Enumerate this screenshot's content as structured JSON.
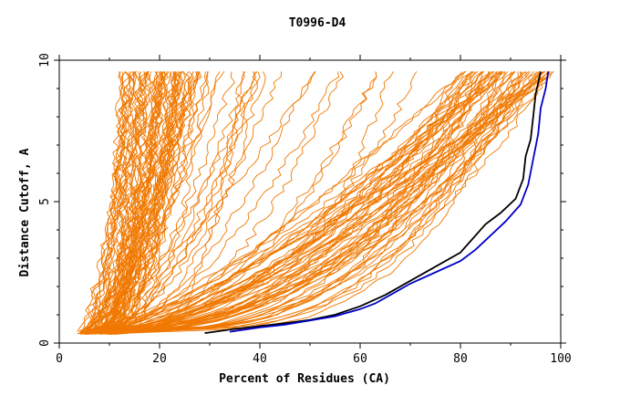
{
  "chart_data": {
    "type": "line",
    "title": "T0996-D4",
    "xlabel": "Percent of Residues (CA)",
    "ylabel": "Distance Cutoff, A",
    "xlim": [
      0,
      100
    ],
    "ylim": [
      0,
      10
    ],
    "x_ticks": [
      "0",
      "20",
      "40",
      "60",
      "80",
      "100"
    ],
    "y_ticks": [
      "0",
      "5",
      "10"
    ],
    "grid": false,
    "colors": {
      "models": "#f07800",
      "reference": "#000000",
      "best": "#0000c8"
    },
    "series": [
      {
        "role": "reference",
        "color": "#000000",
        "points": [
          [
            29,
            0.35
          ],
          [
            35,
            0.5
          ],
          [
            40,
            0.6
          ],
          [
            45,
            0.7
          ],
          [
            50,
            0.82
          ],
          [
            55,
            1.0
          ],
          [
            60,
            1.3
          ],
          [
            65,
            1.7
          ],
          [
            70,
            2.2
          ],
          [
            75,
            2.7
          ],
          [
            80,
            3.2
          ],
          [
            82,
            3.6
          ],
          [
            85,
            4.2
          ],
          [
            88,
            4.6
          ],
          [
            91,
            5.1
          ],
          [
            92.5,
            5.8
          ],
          [
            93,
            6.6
          ],
          [
            94,
            7.2
          ],
          [
            94.5,
            8.0
          ],
          [
            95,
            8.8
          ],
          [
            96,
            9.6
          ]
        ]
      },
      {
        "role": "best",
        "color": "#0000c8",
        "points": [
          [
            34,
            0.4
          ],
          [
            40,
            0.55
          ],
          [
            45,
            0.65
          ],
          [
            50,
            0.8
          ],
          [
            55,
            0.95
          ],
          [
            60,
            1.2
          ],
          [
            63,
            1.4
          ],
          [
            66,
            1.7
          ],
          [
            70,
            2.1
          ],
          [
            75,
            2.5
          ],
          [
            80,
            2.9
          ],
          [
            83,
            3.3
          ],
          [
            86,
            3.8
          ],
          [
            89,
            4.3
          ],
          [
            92,
            4.9
          ],
          [
            93.5,
            5.6
          ],
          [
            94.5,
            6.5
          ],
          [
            95.5,
            7.4
          ],
          [
            96,
            8.3
          ],
          [
            97,
            9.0
          ],
          [
            97.5,
            9.6
          ]
        ]
      }
    ]
  }
}
